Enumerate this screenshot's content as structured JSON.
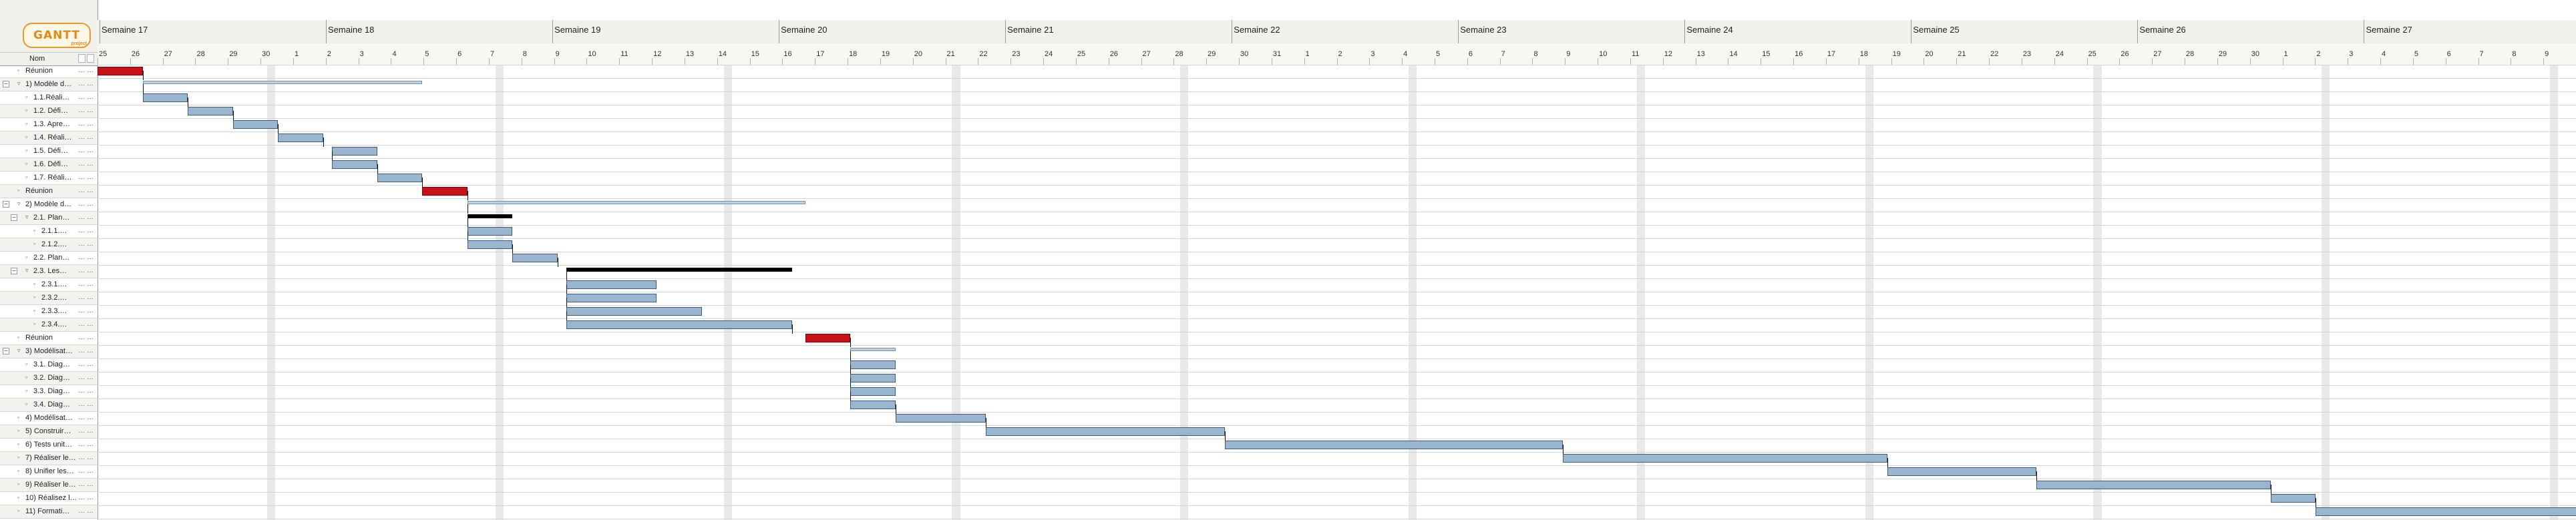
{
  "app": {
    "logo_text": "GANTT",
    "logo_sub": "project"
  },
  "left_pane": {
    "column_header": "Nom"
  },
  "tasks": [
    {
      "label": "Réunion",
      "indent": 0,
      "expander": false,
      "kind": "meeting"
    },
    {
      "label": "1) Modèle d…",
      "indent": 0,
      "expander": true,
      "kind": "summary"
    },
    {
      "label": "1.1.Réali…",
      "indent": 1,
      "expander": false,
      "kind": "task"
    },
    {
      "label": "1.2. Défi…",
      "indent": 1,
      "expander": false,
      "kind": "task"
    },
    {
      "label": "1.3. Apre…",
      "indent": 1,
      "expander": false,
      "kind": "task"
    },
    {
      "label": "1.4. Réali…",
      "indent": 1,
      "expander": false,
      "kind": "task"
    },
    {
      "label": "1.5. Défi…",
      "indent": 1,
      "expander": false,
      "kind": "task"
    },
    {
      "label": "1.6. Défi…",
      "indent": 1,
      "expander": false,
      "kind": "task"
    },
    {
      "label": "1.7. Réali…",
      "indent": 1,
      "expander": false,
      "kind": "task"
    },
    {
      "label": "Réunion",
      "indent": 0,
      "expander": false,
      "kind": "meeting"
    },
    {
      "label": "2) Modèle d…",
      "indent": 0,
      "expander": true,
      "kind": "summary"
    },
    {
      "label": "2.1. Plan…",
      "indent": 1,
      "expander": true,
      "kind": "group"
    },
    {
      "label": "2.1.1.…",
      "indent": 2,
      "expander": false,
      "kind": "task"
    },
    {
      "label": "2.1.2.…",
      "indent": 2,
      "expander": false,
      "kind": "task"
    },
    {
      "label": "2.2. Plan…",
      "indent": 1,
      "expander": false,
      "kind": "task"
    },
    {
      "label": "2.3. Les…",
      "indent": 1,
      "expander": true,
      "kind": "group"
    },
    {
      "label": "2.3.1.…",
      "indent": 2,
      "expander": false,
      "kind": "task"
    },
    {
      "label": "2.3.2.…",
      "indent": 2,
      "expander": false,
      "kind": "task"
    },
    {
      "label": "2.3.3.…",
      "indent": 2,
      "expander": false,
      "kind": "task"
    },
    {
      "label": "2.3.4.…",
      "indent": 2,
      "expander": false,
      "kind": "task"
    },
    {
      "label": "Réunion",
      "indent": 0,
      "expander": false,
      "kind": "meeting"
    },
    {
      "label": "3) Modélisat…",
      "indent": 0,
      "expander": true,
      "kind": "summary"
    },
    {
      "label": "3.1. Diag…",
      "indent": 1,
      "expander": false,
      "kind": "task"
    },
    {
      "label": "3.2. Diag…",
      "indent": 1,
      "expander": false,
      "kind": "task"
    },
    {
      "label": "3.3. Diag…",
      "indent": 1,
      "expander": false,
      "kind": "task"
    },
    {
      "label": "3.4. Diag…",
      "indent": 1,
      "expander": false,
      "kind": "task"
    },
    {
      "label": "4) Modélisat…",
      "indent": 0,
      "expander": false,
      "kind": "task"
    },
    {
      "label": "5) Construir…",
      "indent": 0,
      "expander": false,
      "kind": "task"
    },
    {
      "label": "6) Tests unit…",
      "indent": 0,
      "expander": false,
      "kind": "task"
    },
    {
      "label": "7) Réaliser le…",
      "indent": 0,
      "expander": false,
      "kind": "task"
    },
    {
      "label": "8) Unifier les…",
      "indent": 0,
      "expander": false,
      "kind": "task"
    },
    {
      "label": "9) Réaliser le…",
      "indent": 0,
      "expander": false,
      "kind": "task"
    },
    {
      "label": "10) Réalisez l…",
      "indent": 0,
      "expander": false,
      "kind": "task"
    },
    {
      "label": "11) Formati…",
      "indent": 0,
      "expander": false,
      "kind": "task"
    }
  ],
  "timeline": {
    "weeks": [
      "Semaine 17",
      "Semaine 18",
      "Semaine 19",
      "Semaine 20",
      "Semaine 21",
      "Semaine 22",
      "Semaine 23",
      "Semaine 24",
      "Semaine 25",
      "Semaine 26",
      "Semaine 27"
    ],
    "days": [
      "25",
      "26",
      "27",
      "28",
      "29",
      "30",
      "1",
      "2",
      "3",
      "4",
      "5",
      "6",
      "7",
      "8",
      "9",
      "10",
      "11",
      "12",
      "13",
      "14",
      "15",
      "16",
      "17",
      "18",
      "19",
      "20",
      "21",
      "22",
      "23",
      "24",
      "25",
      "26",
      "27",
      "28",
      "29",
      "30",
      "31",
      "1",
      "2",
      "3",
      "4",
      "5",
      "6",
      "7",
      "8",
      "9",
      "10",
      "11",
      "12",
      "13",
      "14",
      "15",
      "16",
      "17",
      "18",
      "19",
      "20",
      "21",
      "22",
      "23",
      "24",
      "25",
      "26",
      "27",
      "28",
      "29",
      "30",
      "1",
      "2",
      "3",
      "4",
      "5",
      "6",
      "7",
      "8",
      "9"
    ],
    "bars": [
      {
        "row": 0,
        "type": "meeting",
        "start": 0,
        "end": 1
      },
      {
        "row": 1,
        "type": "summary",
        "start": 1,
        "end": 7.2
      },
      {
        "row": 2,
        "type": "task",
        "start": 1,
        "end": 2
      },
      {
        "row": 3,
        "type": "task",
        "start": 2,
        "end": 3
      },
      {
        "row": 4,
        "type": "task",
        "start": 3,
        "end": 4
      },
      {
        "row": 5,
        "type": "task",
        "start": 4,
        "end": 5
      },
      {
        "row": 6,
        "type": "task",
        "start": 5.2,
        "end": 6.2
      },
      {
        "row": 7,
        "type": "task",
        "start": 5.2,
        "end": 6.2
      },
      {
        "row": 8,
        "type": "task",
        "start": 6.2,
        "end": 7.2
      },
      {
        "row": 9,
        "type": "meeting",
        "start": 7.2,
        "end": 8.2
      },
      {
        "row": 10,
        "type": "summary",
        "start": 8.2,
        "end": 15.7
      },
      {
        "row": 11,
        "type": "group",
        "start": 8.2,
        "end": 9.2
      },
      {
        "row": 12,
        "type": "task",
        "start": 8.2,
        "end": 9.2
      },
      {
        "row": 13,
        "type": "task",
        "start": 8.2,
        "end": 9.2
      },
      {
        "row": 14,
        "type": "task",
        "start": 9.2,
        "end": 10.2
      },
      {
        "row": 15,
        "type": "group",
        "start": 10.4,
        "end": 15.4
      },
      {
        "row": 16,
        "type": "task",
        "start": 10.4,
        "end": 12.4
      },
      {
        "row": 17,
        "type": "task",
        "start": 10.4,
        "end": 12.4
      },
      {
        "row": 18,
        "type": "task",
        "start": 10.4,
        "end": 13.4
      },
      {
        "row": 19,
        "type": "task",
        "start": 10.4,
        "end": 15.4
      },
      {
        "row": 20,
        "type": "meeting",
        "start": 15.7,
        "end": 16.7
      },
      {
        "row": 21,
        "type": "summary",
        "start": 16.7,
        "end": 17.7
      },
      {
        "row": 22,
        "type": "task",
        "start": 16.7,
        "end": 17.7
      },
      {
        "row": 23,
        "type": "task",
        "start": 16.7,
        "end": 17.7
      },
      {
        "row": 24,
        "type": "task",
        "start": 16.7,
        "end": 17.7
      },
      {
        "row": 25,
        "type": "task",
        "start": 16.7,
        "end": 17.7
      },
      {
        "row": 26,
        "type": "task",
        "start": 17.7,
        "end": 19.7
      },
      {
        "row": 27,
        "type": "task",
        "start": 19.7,
        "end": 25
      },
      {
        "row": 28,
        "type": "task",
        "start": 25,
        "end": 32.5
      },
      {
        "row": 29,
        "type": "task",
        "start": 32.5,
        "end": 39.7
      },
      {
        "row": 30,
        "type": "task",
        "start": 39.7,
        "end": 43
      },
      {
        "row": 31,
        "type": "task",
        "start": 43,
        "end": 48.2
      },
      {
        "row": 32,
        "type": "task",
        "start": 48.2,
        "end": 49.2
      },
      {
        "row": 33,
        "type": "task",
        "start": 49.2,
        "end": 56.4
      }
    ]
  }
}
